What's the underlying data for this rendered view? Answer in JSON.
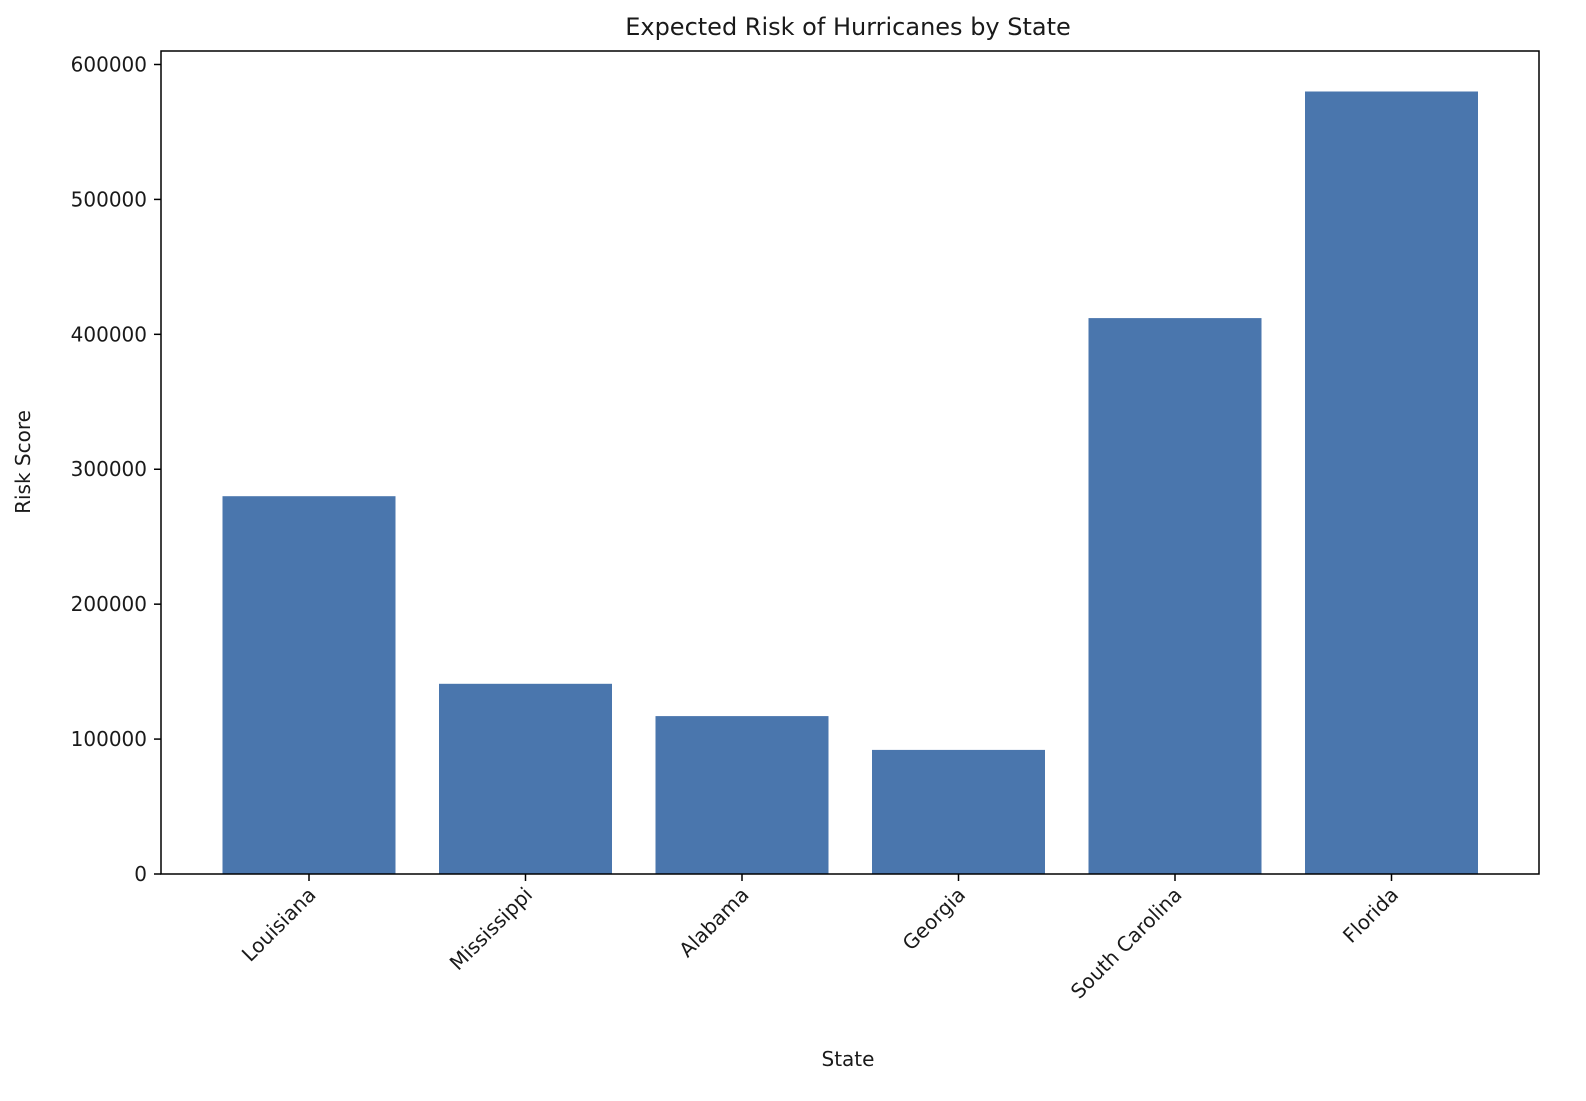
{
  "chart_data": {
    "type": "bar",
    "title": "Expected Risk of Hurricanes by State",
    "xlabel": "State",
    "ylabel": "Risk Score",
    "categories": [
      "Louisiana",
      "Mississippi",
      "Alabama",
      "Georgia",
      "South Carolina",
      "Florida"
    ],
    "values": [
      280000,
      141000,
      117000,
      92000,
      412000,
      580000
    ],
    "ylim": [
      0,
      610000
    ],
    "yticks": [
      0,
      100000,
      200000,
      300000,
      400000,
      500000,
      600000
    ],
    "ytick_labels": [
      "0",
      "100000",
      "200000",
      "300000",
      "400000",
      "500000",
      "600000"
    ],
    "grid": false,
    "legend": "none",
    "bar_color": "#4a76ad"
  }
}
